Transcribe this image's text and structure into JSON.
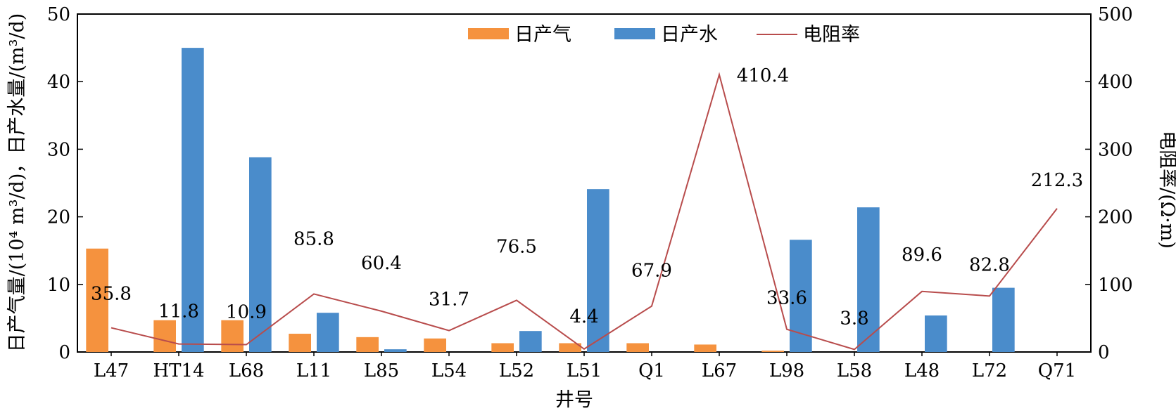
{
  "chart_data": {
    "type": "bar",
    "title": "",
    "xlabel": "井号",
    "ylabel_left": "日产气量/(10⁴ m³/d)，日产水量/(m³/d)",
    "ylabel_right": "电阻率/(Ω·m)",
    "ylim_left": [
      0,
      50
    ],
    "ylim_right": [
      0,
      500
    ],
    "yticks_left": [
      "0",
      "10",
      "20",
      "30",
      "40",
      "50"
    ],
    "yticks_right": [
      "0",
      "100",
      "200",
      "300",
      "400",
      "500"
    ],
    "grid": false,
    "legend_position": "top",
    "categories": [
      "L47",
      "HT14",
      "L68",
      "L11",
      "L85",
      "L54",
      "L52",
      "L51",
      "Q1",
      "L67",
      "L98",
      "L58",
      "L48",
      "L72",
      "Q71"
    ],
    "series": [
      {
        "name": "日产气",
        "type": "bar",
        "axis": "left",
        "color": "#f5923e",
        "values": [
          15.3,
          4.7,
          4.7,
          2.7,
          2.2,
          2.0,
          1.3,
          1.3,
          1.3,
          1.1,
          0.2,
          0,
          0,
          0,
          0
        ]
      },
      {
        "name": "日产水",
        "type": "bar",
        "axis": "left",
        "color": "#4a8ccb",
        "values": [
          0,
          45.0,
          28.8,
          5.8,
          0.4,
          0,
          3.1,
          24.1,
          0,
          0,
          16.6,
          21.4,
          5.4,
          9.5,
          0
        ]
      },
      {
        "name": "电阻率",
        "type": "line",
        "axis": "right",
        "color": "#b84c4c",
        "values": [
          35.8,
          11.8,
          10.9,
          85.8,
          60.4,
          31.7,
          76.5,
          4.4,
          67.9,
          410.4,
          33.6,
          3.8,
          89.6,
          82.8,
          212.3
        ],
        "labels": [
          "35.8",
          "11.8",
          "10.9",
          "85.8",
          "60.4",
          "31.7",
          "76.5",
          "4.4",
          "67.9",
          "410.4",
          "33.6",
          "3.8",
          "89.6",
          "82.8",
          "212.3"
        ]
      }
    ]
  }
}
